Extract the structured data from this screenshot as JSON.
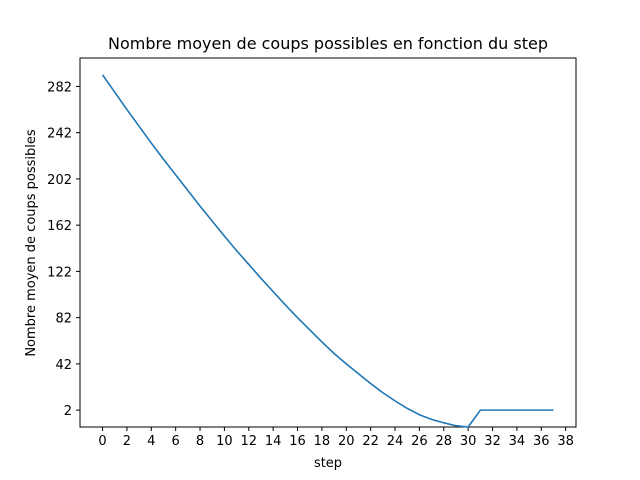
{
  "chart_data": {
    "type": "line",
    "title": "Nombre moyen de coups possibles en fonction du step",
    "xlabel": "step",
    "ylabel": "Nombre moyen de coups possibles",
    "xlim": [
      -1.85,
      38.85
    ],
    "ylim": [
      -12.6,
      306.6
    ],
    "xticks": [
      0,
      2,
      4,
      6,
      8,
      10,
      12,
      14,
      16,
      18,
      20,
      22,
      24,
      26,
      28,
      30,
      32,
      34,
      36,
      38
    ],
    "yticks": [
      2,
      42,
      82,
      122,
      162,
      202,
      242,
      282
    ],
    "grid": false,
    "legend": "none",
    "colors": {
      "line": "#1f77b4"
    },
    "series": [
      {
        "x": [
          0,
          1,
          2,
          3,
          4,
          5,
          6,
          7,
          8,
          9,
          10,
          11,
          12,
          13,
          14,
          15,
          16,
          17,
          18,
          19,
          20,
          21,
          22,
          23,
          24,
          25,
          26,
          27,
          28,
          29,
          30,
          31,
          32,
          33,
          34,
          35,
          36,
          37
        ],
        "values": [
          292,
          277,
          262,
          247.5,
          233,
          219,
          205.5,
          192,
          178.5,
          165.5,
          152.5,
          140,
          128,
          116,
          104.5,
          93,
          82,
          71.5,
          61,
          51,
          42,
          33.5,
          25,
          17,
          10,
          3.5,
          -2,
          -6,
          -9,
          -11.5,
          -12.6,
          2,
          2,
          2,
          2,
          2,
          2,
          2
        ]
      }
    ]
  }
}
